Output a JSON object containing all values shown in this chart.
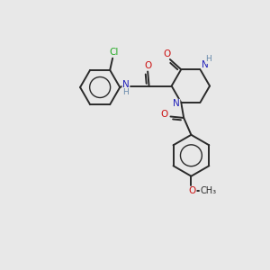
{
  "bg_color": "#e8e8e8",
  "bond_color": "#2a2a2a",
  "bond_width": 1.4,
  "colors": {
    "N": "#2222bb",
    "O": "#cc1111",
    "Cl": "#22aa22",
    "H": "#6688aa",
    "C": "#2a2a2a"
  },
  "label_fs": 7.5,
  "aromatic_inner_r": 0.52
}
